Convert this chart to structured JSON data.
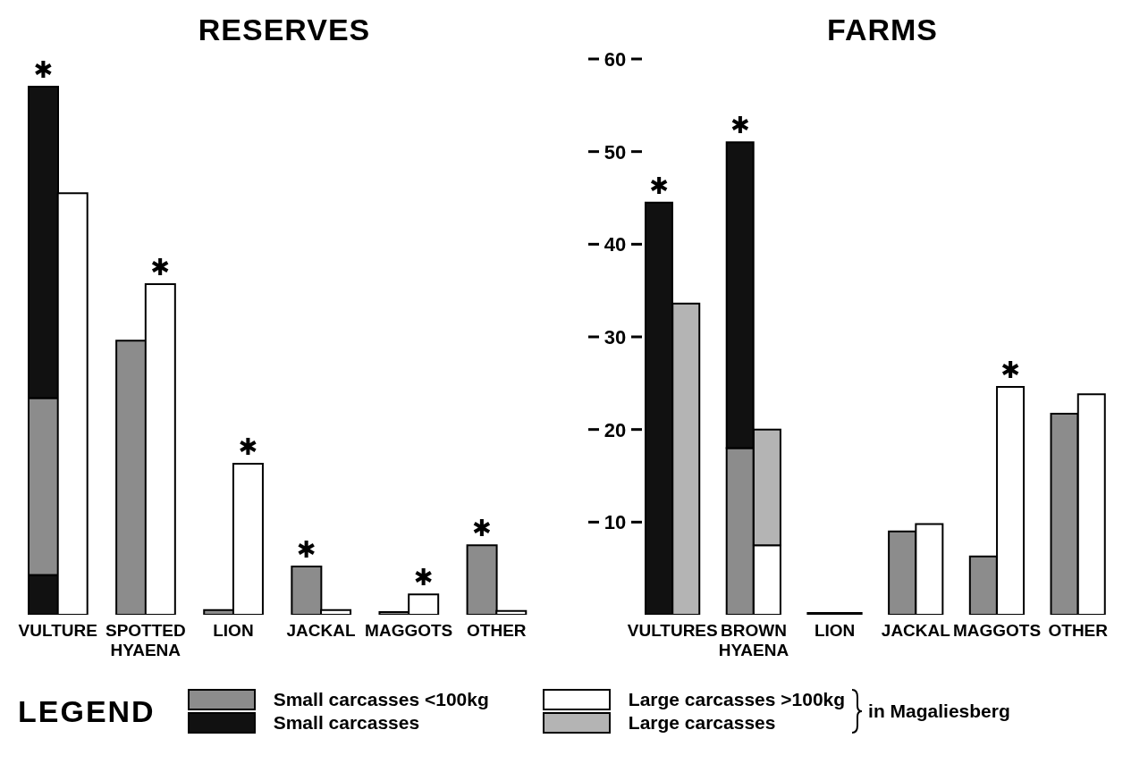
{
  "chart_data": [
    {
      "type": "bar",
      "title": "RESERVES",
      "categories": [
        "VULTURE",
        null,
        null,
        "SPOTTED HYAENA",
        null,
        null,
        "LION",
        null,
        null,
        "JACKAL",
        null,
        null,
        "MAGGOTS",
        null,
        null,
        "OTHER",
        null
      ],
      "ylim": [
        0,
        60
      ],
      "yticks": [
        10,
        20,
        30,
        40,
        50,
        60
      ],
      "tick_labels": "x",
      "stacked": true,
      "legend": "bottom",
      "legend_title": "LEGEND",
      "series": [
        {
          "color": "#111111",
          "values": [
            4.3,
            null,
            null,
            null,
            null,
            null,
            null,
            null,
            null,
            null,
            null,
            null,
            null,
            null,
            null,
            null,
            null
          ]
        },
        {
          "name": "Small carcasses <100kg",
          "color": "#8c8c8c",
          "values": [
            19.1,
            null,
            null,
            29.6,
            null,
            null,
            0.5,
            null,
            null,
            5.2,
            null,
            null,
            0.3,
            null,
            null,
            7.5,
            null
          ]
        },
        {
          "name": "Small carcasses",
          "color": "#111111",
          "values": [
            33.6,
            null,
            null,
            null,
            null,
            null,
            null,
            null,
            null,
            null,
            null,
            null,
            null,
            null,
            null,
            null,
            null
          ]
        },
        {
          "name": "Large carcasses >100kg",
          "color": "#ffffff",
          "values": [
            null,
            45.5,
            null,
            null,
            35.7,
            null,
            null,
            16.3,
            null,
            null,
            0.5,
            null,
            null,
            2.2,
            null,
            null,
            0.4
          ]
        }
      ],
      "annotations": [
        {
          "text": "✱",
          "x": "VULTURE",
          "y": 57
        },
        {
          "text": "✱",
          "y": 35.7
        },
        {
          "text": "✱",
          "y": 16.3
        },
        {
          "text": "✱",
          "x": "JACKAL",
          "y": 5.2
        },
        {
          "text": "✱",
          "y": 2.2
        },
        {
          "text": "✱",
          "x": "OTHER",
          "y": 7.5
        },
        "in Magaliesberg"
      ]
    },
    {
      "type": "bar",
      "title": "FARMS",
      "categories": [
        "VULTURES",
        null,
        null,
        "BROWN HYAENA",
        null,
        null,
        "LION",
        null,
        null,
        "JACKAL",
        null,
        null,
        "MAGGOTS",
        null,
        null,
        "OTHER",
        null
      ],
      "ylim": [
        0,
        60
      ],
      "yticks": [
        10,
        20,
        30,
        40,
        50,
        60
      ],
      "stacked": true,
      "series": [
        {
          "color": "#8c8c8c",
          "values": [
            null,
            null,
            null,
            18,
            null,
            null,
            0.2,
            null,
            null,
            9.0,
            null,
            null,
            6.3,
            null,
            null,
            21.7,
            null
          ]
        },
        {
          "color": "#111111",
          "values": [
            44.5,
            null,
            null,
            33,
            null,
            null,
            null,
            null,
            null,
            null,
            null,
            null,
            null,
            null,
            null,
            null,
            null
          ]
        },
        {
          "color": "#ffffff",
          "values": [
            null,
            null,
            null,
            null,
            7.5,
            null,
            null,
            0.2,
            null,
            null,
            9.8,
            null,
            null,
            24.6,
            null,
            null,
            23.8
          ]
        },
        {
          "name": "Large carcasses",
          "color": "#b4b4b4",
          "values": [
            null,
            33.6,
            null,
            null,
            12.5,
            null,
            null,
            null,
            null,
            null,
            null,
            null,
            null,
            null,
            null,
            null,
            null
          ]
        }
      ],
      "annotations": [
        {
          "text": "✱",
          "x": "VULTURES",
          "y": 44.5
        },
        {
          "text": "✱",
          "x": "BROWN HYAENA",
          "y": 51
        },
        {
          "text": "✱",
          "y": 24.6
        }
      ]
    }
  ]
}
